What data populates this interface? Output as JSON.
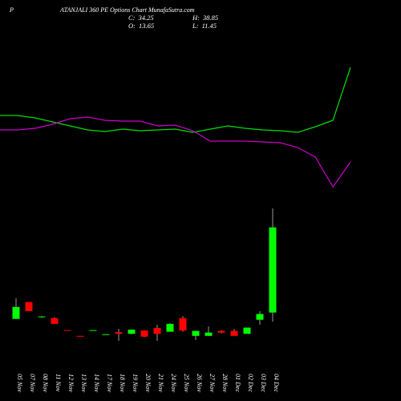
{
  "chart_data": {
    "type": "candlestick",
    "title_prefix": "P",
    "title": "ATANJALI 360 PE Options  Chart MunafaSutra.com",
    "ohlc": [
      {
        "key": "C:",
        "value": 34.25
      },
      {
        "key": "O:",
        "value": 13.65
      },
      {
        "key": "H:",
        "value": 38.85
      },
      {
        "key": "L:",
        "value": 11.45
      }
    ],
    "categories": [
      "05 Nov",
      "07 Nov",
      "08 Nov",
      "11 Nov",
      "12 Nov",
      "13 Nov",
      "14 Nov",
      "17 Nov",
      "18 Nov",
      "19 Nov",
      "20 Nov",
      "21 Nov",
      "24 Nov",
      "25 Nov",
      "26 Nov",
      "27 Nov",
      "28 Nov",
      "01 Dec",
      "02 Dec",
      "03 Dec",
      "04 Dec"
    ],
    "open": [
      12.1,
      16.2,
      12.5,
      12.3,
      9.4,
      8.0,
      9.2,
      8.3,
      8.9,
      8.5,
      9.3,
      9.9,
      9.0,
      12.3,
      8.0,
      8.0,
      9.2,
      9.2,
      8.5,
      11.9,
      13.65
    ],
    "high": [
      17.1,
      16.2,
      12.8,
      12.5,
      9.4,
      8.0,
      9.4,
      8.4,
      9.7,
      9.6,
      9.4,
      10.7,
      11.1,
      12.8,
      9.2,
      10.3,
      9.4,
      9.7,
      10.0,
      14.0,
      38.85
    ],
    "low": [
      12.1,
      14.0,
      12.4,
      10.9,
      9.3,
      7.9,
      9.2,
      8.3,
      6.8,
      8.4,
      7.7,
      6.8,
      9.0,
      9.0,
      7.0,
      8.0,
      8.6,
      8.0,
      8.5,
      10.7,
      11.45
    ],
    "close": [
      15.0,
      14.0,
      12.7,
      10.9,
      9.3,
      7.9,
      9.4,
      8.4,
      8.5,
      9.5,
      7.8,
      8.5,
      10.9,
      9.3,
      9.2,
      8.8,
      8.8,
      8.0,
      10.0,
      13.3,
      34.25
    ],
    "up_color": "#00ff00",
    "down_color": "#ff0000",
    "wick_color": "#999999",
    "ylim": [
      0,
      89.3
    ],
    "overlay_ylim": [
      0,
      500
    ],
    "overlays": [
      {
        "color": "#00dd00",
        "values": [
          356,
          356,
          353,
          348,
          343,
          338,
          336,
          339,
          337,
          338,
          339,
          335,
          339,
          343,
          340,
          338,
          337,
          335,
          342,
          350,
          416
        ]
      },
      {
        "color": "#cc00cc",
        "values": [
          338,
          338,
          340,
          345,
          352,
          354,
          350,
          349,
          349,
          343,
          344,
          337,
          324,
          324,
          324,
          323,
          322,
          316,
          304,
          267,
          298
        ]
      }
    ]
  }
}
